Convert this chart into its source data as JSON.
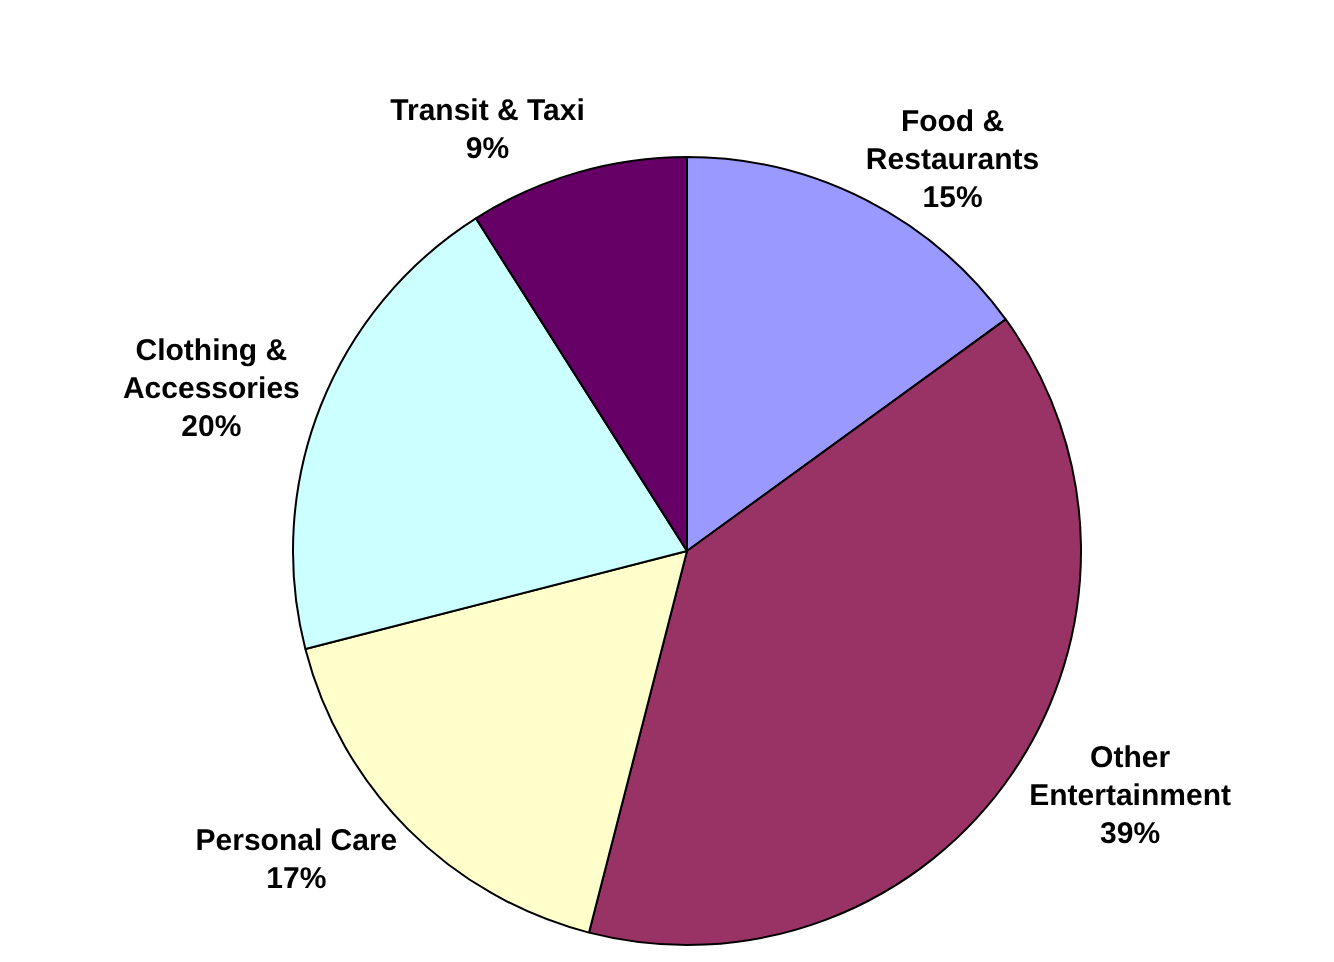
{
  "chart_data": {
    "type": "pie",
    "categories": [
      "Food & Restaurants",
      "Other Entertainment",
      "Personal Care",
      "Clothing & Accessories",
      "Transit & Taxi"
    ],
    "values": [
      15,
      39,
      17,
      20,
      9
    ],
    "colors": [
      "#9999ff",
      "#993366",
      "#ffffcc",
      "#ccffff",
      "#660066"
    ],
    "value_labels": [
      "15%",
      "39%",
      "17%",
      "20%",
      "9%"
    ],
    "legend": false
  }
}
